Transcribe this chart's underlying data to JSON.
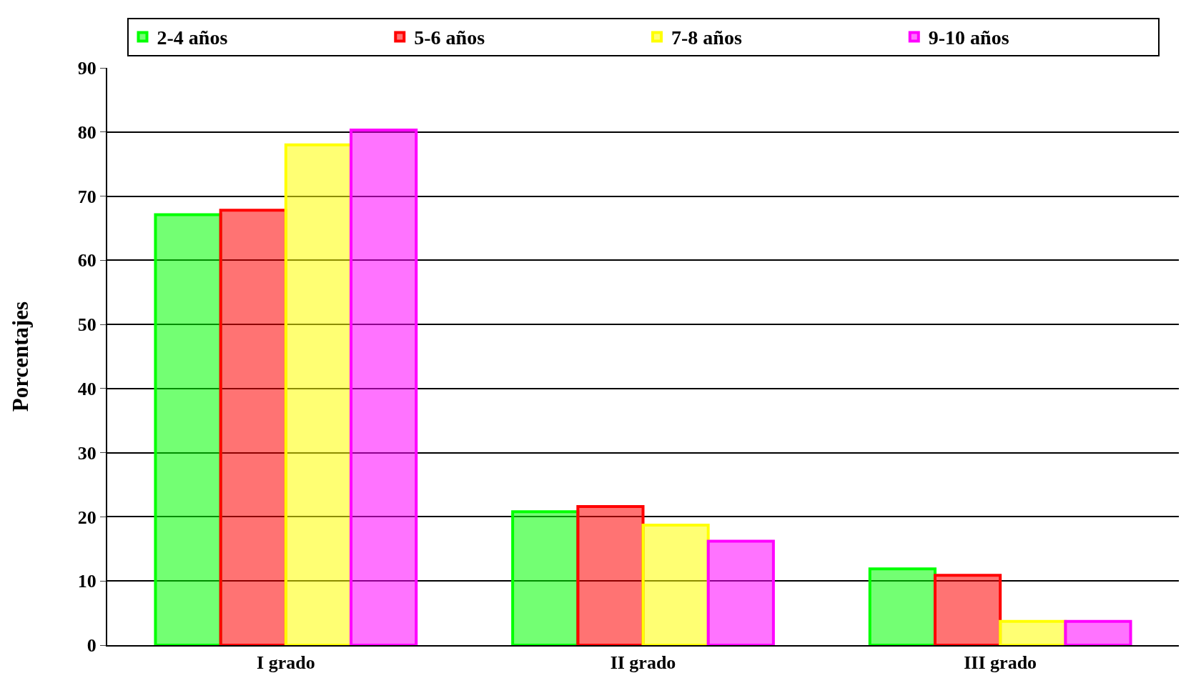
{
  "chart_data": {
    "type": "bar",
    "ylabel": "Porcentajes",
    "categories": [
      "I grado",
      "II grado",
      "III grado"
    ],
    "series": [
      {
        "name": "2-4 años",
        "color": "#00ff00",
        "values": [
          67.1,
          20.8,
          11.9
        ]
      },
      {
        "name": "5-6 años",
        "color": "#ff0000",
        "values": [
          67.8,
          21.6,
          10.9
        ]
      },
      {
        "name": "7-8 años",
        "color": "#ffff00",
        "values": [
          78.0,
          18.7,
          3.7
        ]
      },
      {
        "name": "9-10 años",
        "color": "#ff00ff",
        "values": [
          80.3,
          16.2,
          3.7
        ]
      }
    ],
    "ylim": [
      0,
      90
    ],
    "yticks": [
      0,
      10,
      20,
      30,
      40,
      50,
      60,
      70,
      80,
      90
    ],
    "grid": "y",
    "legend": "top"
  }
}
